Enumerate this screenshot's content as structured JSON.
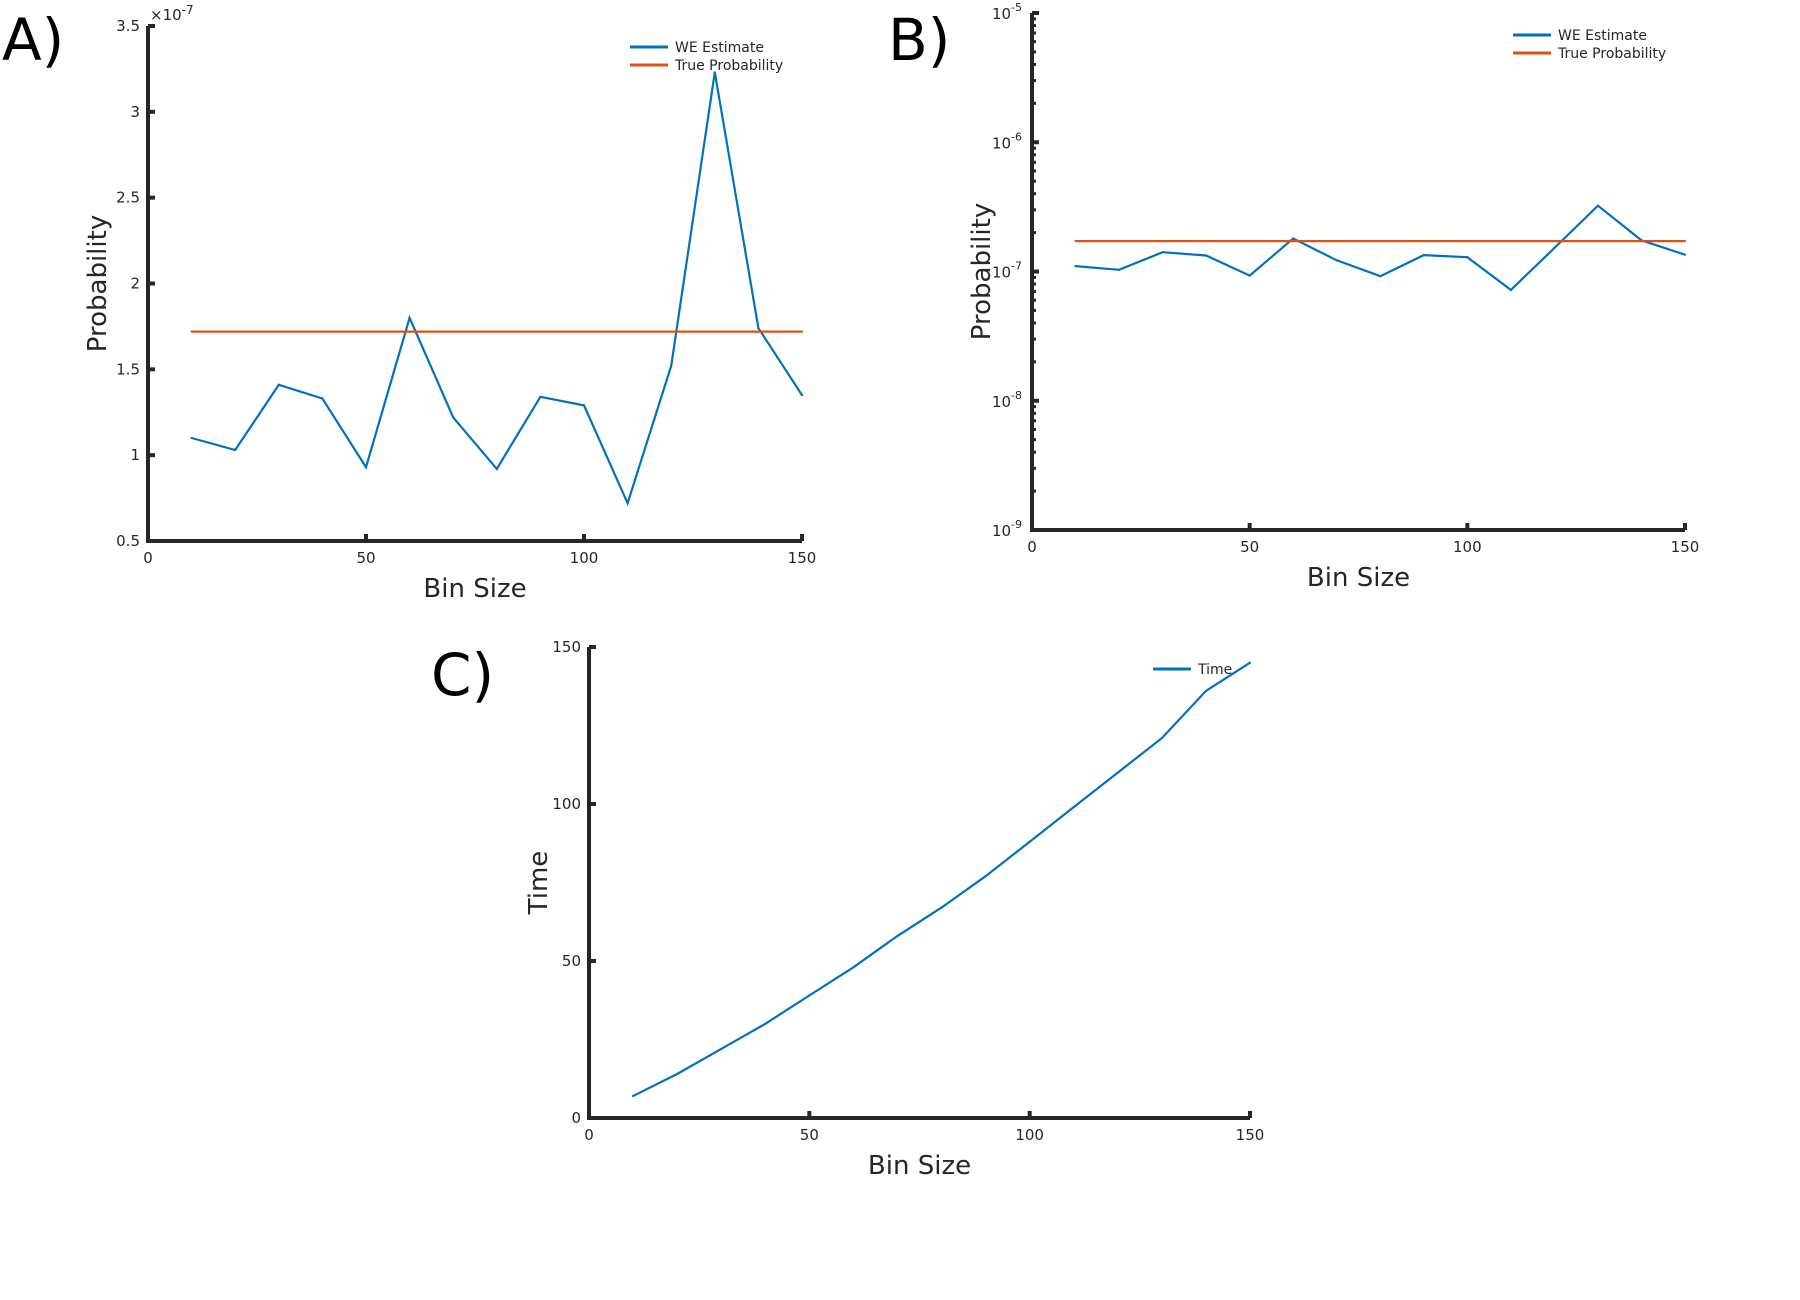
{
  "colors": {
    "we_estimate": "#0072bd",
    "true_probability": "#d95319",
    "time": "#0072bd",
    "axis": "#262626"
  },
  "chart_data": [
    {
      "panel": "A)",
      "type": "line",
      "xlabel": "Bin Size",
      "ylabel": "Probability",
      "exponent_label": "×10",
      "exponent_power": "-7",
      "xlim": [
        0,
        150
      ],
      "ylim": [
        0.5,
        3.5
      ],
      "yscale": "linear",
      "xticks": [
        0,
        50,
        100,
        150
      ],
      "yticks": [
        0.5,
        1,
        1.5,
        2,
        2.5,
        3,
        3.5
      ],
      "ytick_labels": [
        "0.5",
        "1",
        "1.5",
        "2",
        "2.5",
        "3",
        "3.5"
      ],
      "legend_location": "top-right",
      "x": [
        10,
        20,
        30,
        40,
        50,
        60,
        70,
        80,
        90,
        100,
        110,
        120,
        130,
        140,
        150
      ],
      "series": [
        {
          "name": "WE Estimate",
          "values": [
            1.1,
            1.03,
            1.41,
            1.33,
            0.93,
            1.8,
            1.22,
            0.92,
            1.34,
            1.29,
            0.72,
            1.52,
            3.23,
            1.74,
            1.35
          ]
        },
        {
          "name": "True Probability",
          "values": [
            1.72,
            1.72,
            1.72,
            1.72,
            1.72,
            1.72,
            1.72,
            1.72,
            1.72,
            1.72,
            1.72,
            1.72,
            1.72,
            1.72,
            1.72
          ]
        }
      ]
    },
    {
      "panel": "B)",
      "type": "line",
      "xlabel": "Bin Size",
      "ylabel": "Probability",
      "xlim": [
        0,
        150
      ],
      "ylim": [
        1e-09,
        1e-05
      ],
      "yscale": "log",
      "xticks": [
        0,
        50,
        100,
        150
      ],
      "ytick_powers": [
        "-9",
        "-8",
        "-7",
        "-6",
        "-5"
      ],
      "ytick_base": "10",
      "legend_location": "top-right",
      "x": [
        10,
        20,
        30,
        40,
        50,
        60,
        70,
        80,
        90,
        100,
        110,
        120,
        130,
        140,
        150
      ],
      "series": [
        {
          "name": "WE Estimate",
          "values": [
            1.1e-07,
            1.03e-07,
            1.41e-07,
            1.33e-07,
            9.3e-08,
            1.8e-07,
            1.22e-07,
            9.2e-08,
            1.34e-07,
            1.29e-07,
            7.2e-08,
            1.52e-07,
            3.23e-07,
            1.74e-07,
            1.35e-07
          ]
        },
        {
          "name": "True Probability",
          "values": [
            1.72e-07,
            1.72e-07,
            1.72e-07,
            1.72e-07,
            1.72e-07,
            1.72e-07,
            1.72e-07,
            1.72e-07,
            1.72e-07,
            1.72e-07,
            1.72e-07,
            1.72e-07,
            1.72e-07,
            1.72e-07,
            1.72e-07
          ]
        }
      ]
    },
    {
      "panel": "C)",
      "type": "line",
      "xlabel": "Bin Size",
      "ylabel": "Time",
      "xlim": [
        0,
        150
      ],
      "ylim": [
        0,
        150
      ],
      "yscale": "linear",
      "xticks": [
        0,
        50,
        100,
        150
      ],
      "yticks": [
        0,
        50,
        100,
        150
      ],
      "ytick_labels": [
        "0",
        "50",
        "100",
        "150"
      ],
      "legend_location": "top-right",
      "x": [
        10,
        20,
        30,
        40,
        50,
        60,
        70,
        80,
        90,
        100,
        110,
        120,
        130,
        140,
        150
      ],
      "series": [
        {
          "name": "Time",
          "values": [
            7,
            14,
            22,
            30,
            39,
            48,
            58,
            67,
            77,
            88,
            99,
            110,
            121,
            136,
            145
          ]
        }
      ]
    }
  ]
}
